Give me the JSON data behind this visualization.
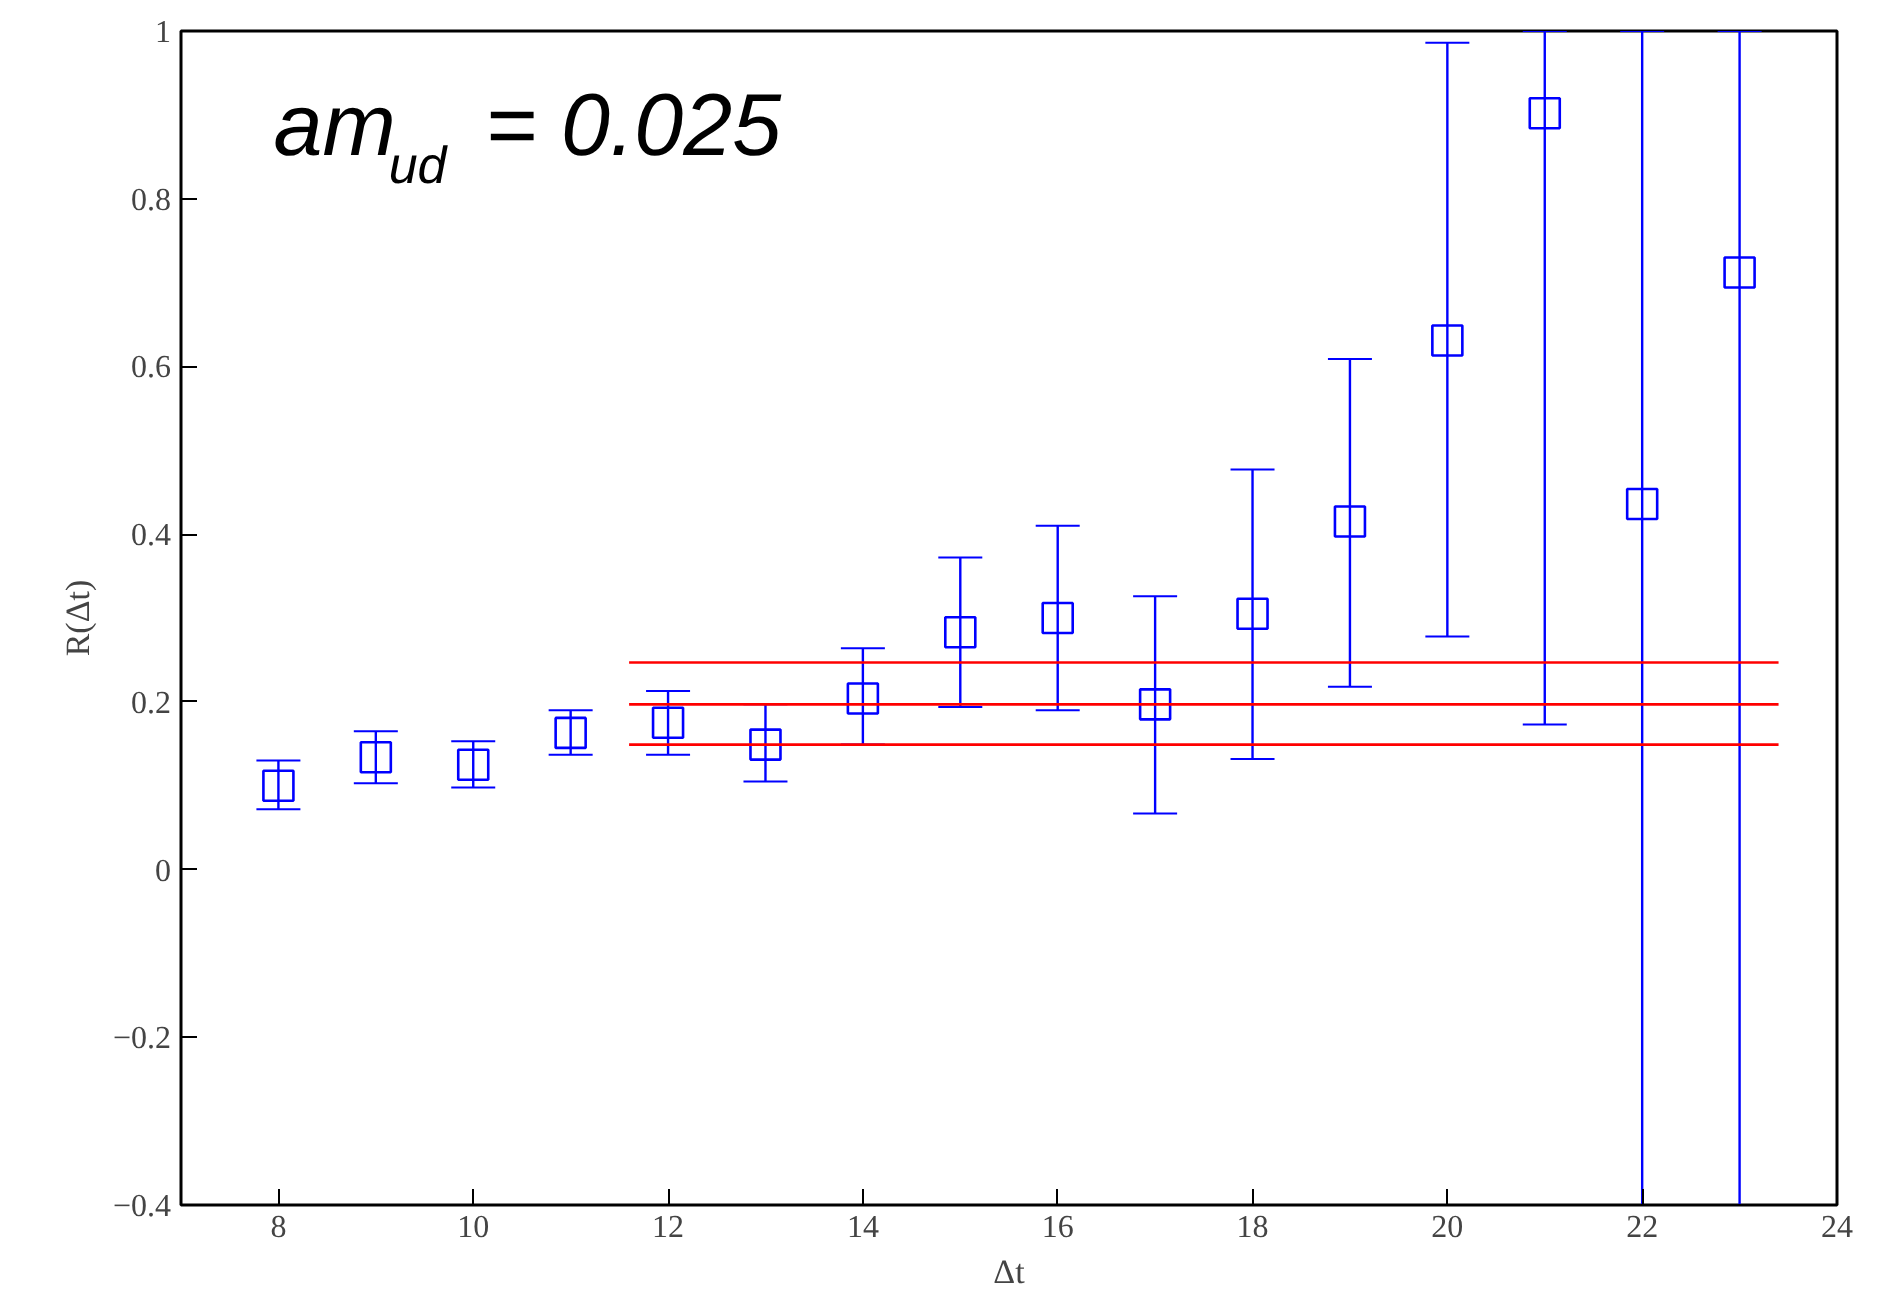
{
  "chart_data": {
    "type": "scatter",
    "xlabel": "Δt",
    "ylabel": "R(Δt)",
    "xlim": [
      7,
      24
    ],
    "ylim": [
      -0.4,
      1
    ],
    "xticks": [
      8,
      10,
      12,
      14,
      16,
      18,
      20,
      22,
      24
    ],
    "yticks": [
      -0.4,
      -0.2,
      0,
      0.2,
      0.4,
      0.6,
      0.8,
      1
    ],
    "grid": false,
    "annotations": [
      "am$_{ud}$ = 0.025"
    ],
    "series": [
      {
        "marker": "square",
        "color": "#0000ff",
        "x": [
          8,
          9,
          10,
          11,
          12,
          13,
          14,
          15,
          16,
          17,
          18,
          19,
          20,
          21,
          22,
          23
        ],
        "values": [
          0.1,
          0.134,
          0.125,
          0.163,
          0.175,
          0.149,
          0.204,
          0.283,
          0.3,
          0.197,
          0.305,
          0.415,
          0.631,
          0.902,
          0.436,
          0.712
        ],
        "errors": [
          [
            0.072,
            0.13
          ],
          [
            0.103,
            0.165
          ],
          [
            0.098,
            0.153
          ],
          [
            0.137,
            0.19
          ],
          [
            0.137,
            0.213
          ],
          [
            0.105,
            0.197
          ],
          [
            0.149,
            0.264
          ],
          [
            0.194,
            0.372
          ],
          [
            0.19,
            0.41
          ],
          [
            0.067,
            0.326
          ],
          [
            0.132,
            0.477
          ],
          [
            0.218,
            0.609
          ],
          [
            0.278,
            0.986
          ],
          [
            0.173,
            1
          ],
          [
            -0.4,
            1
          ],
          [
            -0.4,
            1
          ]
        ]
      },
      {
        "type": "line",
        "color": "#ff0000",
        "x": [
          11.6,
          23.4
        ],
        "values": [
          0.247,
          0.247
        ]
      },
      {
        "type": "line",
        "color": "#ff0000",
        "x": [
          11.6,
          23.4
        ],
        "values": [
          0.197,
          0.197
        ]
      },
      {
        "type": "line",
        "color": "#ff0000",
        "x": [
          11.6,
          23.4
        ],
        "values": [
          0.149,
          0.149
        ]
      }
    ]
  }
}
